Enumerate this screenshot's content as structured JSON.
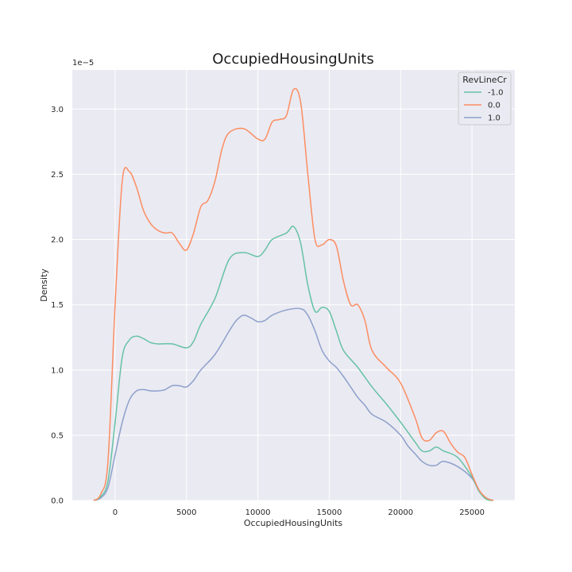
{
  "chart_data": {
    "type": "line",
    "title": "OccupiedHousingUnits",
    "xlabel": "OccupiedHousingUnits",
    "ylabel": "Density",
    "y_offset_label": "1e−5",
    "xlim": [
      -3000,
      28000
    ],
    "ylim": [
      0,
      3.3
    ],
    "xticks": [
      0,
      5000,
      10000,
      15000,
      20000,
      25000
    ],
    "xtick_labels": [
      "0",
      "5000",
      "10000",
      "15000",
      "20000",
      "25000"
    ],
    "yticks": [
      0,
      0.5,
      1.0,
      1.5,
      2.0,
      2.5,
      3.0
    ],
    "ytick_labels": [
      "0.0",
      "0.5",
      "1.0",
      "1.5",
      "2.0",
      "2.5",
      "3.0"
    ],
    "grid": true,
    "background": "#eaeaf2",
    "legend": {
      "title": "RevLineCr",
      "placement": "top-right"
    },
    "series": [
      {
        "name": "-1.0",
        "color": "#66c2a5",
        "x": [
          -1500,
          -1000,
          -500,
          0,
          500,
          1000,
          1500,
          2000,
          2500,
          3000,
          4000,
          5000,
          5500,
          6000,
          7000,
          8000,
          9000,
          10000,
          10500,
          11000,
          12000,
          12500,
          13000,
          13500,
          14000,
          14500,
          15000,
          15500,
          16000,
          17000,
          18000,
          19000,
          20000,
          21000,
          21500,
          22000,
          22500,
          23000,
          24000,
          25000,
          25500,
          26000,
          26500
        ],
        "y": [
          0.0,
          0.03,
          0.15,
          0.6,
          1.1,
          1.23,
          1.26,
          1.24,
          1.21,
          1.2,
          1.2,
          1.17,
          1.22,
          1.35,
          1.55,
          1.85,
          1.9,
          1.87,
          1.92,
          2.0,
          2.05,
          2.1,
          1.97,
          1.65,
          1.45,
          1.48,
          1.45,
          1.3,
          1.15,
          1.02,
          0.87,
          0.74,
          0.6,
          0.45,
          0.38,
          0.38,
          0.41,
          0.38,
          0.33,
          0.18,
          0.07,
          0.01,
          0.0
        ]
      },
      {
        "name": "0.0",
        "color": "#fc8d62",
        "x": [
          -1500,
          -1000,
          -500,
          0,
          500,
          1000,
          1500,
          2000,
          2500,
          3000,
          3500,
          4000,
          4500,
          5000,
          5500,
          6000,
          6500,
          7000,
          7500,
          8000,
          9000,
          10000,
          10500,
          11000,
          11500,
          12000,
          12500,
          13000,
          13500,
          14000,
          14500,
          15000,
          15500,
          16000,
          16500,
          17000,
          17500,
          18000,
          19000,
          20000,
          21000,
          21500,
          22000,
          22500,
          23000,
          23500,
          24000,
          24500,
          25000,
          25500,
          26000,
          26500
        ],
        "y": [
          0.0,
          0.05,
          0.3,
          1.5,
          2.45,
          2.52,
          2.4,
          2.22,
          2.12,
          2.07,
          2.05,
          2.05,
          1.97,
          1.92,
          2.05,
          2.25,
          2.3,
          2.45,
          2.7,
          2.82,
          2.85,
          2.77,
          2.77,
          2.9,
          2.92,
          2.95,
          3.15,
          3.05,
          2.5,
          2.0,
          1.96,
          2.0,
          1.95,
          1.68,
          1.5,
          1.5,
          1.38,
          1.15,
          1.02,
          0.9,
          0.64,
          0.48,
          0.46,
          0.52,
          0.53,
          0.44,
          0.37,
          0.33,
          0.2,
          0.08,
          0.02,
          0.0
        ]
      },
      {
        "name": "1.0",
        "color": "#8da0cb",
        "x": [
          -1500,
          -1000,
          -500,
          0,
          500,
          1000,
          1500,
          2000,
          2500,
          3000,
          3500,
          4000,
          4500,
          5000,
          5500,
          6000,
          7000,
          8000,
          8500,
          9000,
          9500,
          10000,
          10500,
          11000,
          12000,
          13000,
          13500,
          14000,
          14500,
          15000,
          15500,
          16000,
          16500,
          17000,
          17500,
          18000,
          19000,
          20000,
          20500,
          21000,
          21500,
          22000,
          22500,
          23000,
          24000,
          25000,
          25500,
          26000,
          26500
        ],
        "y": [
          0.0,
          0.02,
          0.1,
          0.35,
          0.6,
          0.77,
          0.84,
          0.85,
          0.84,
          0.84,
          0.85,
          0.88,
          0.88,
          0.87,
          0.92,
          1.0,
          1.12,
          1.3,
          1.38,
          1.42,
          1.4,
          1.37,
          1.38,
          1.42,
          1.46,
          1.47,
          1.42,
          1.3,
          1.15,
          1.07,
          1.02,
          0.95,
          0.87,
          0.79,
          0.73,
          0.66,
          0.6,
          0.5,
          0.42,
          0.36,
          0.3,
          0.27,
          0.27,
          0.3,
          0.26,
          0.17,
          0.07,
          0.02,
          0.0
        ]
      }
    ]
  }
}
